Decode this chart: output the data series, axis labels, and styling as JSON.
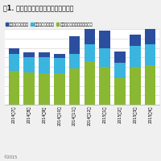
{
  "title": "図1. ウェアラブル端末の販売数量推移",
  "legend_labels": [
    "スマートウォッチ",
    "スポーツウォッチ",
    "その他（リストバンド型など"
  ],
  "colors": [
    "#2b4f9e",
    "#3ab5e0",
    "#8ab832"
  ],
  "categories": [
    "2014年7月",
    "2014年8月",
    "2014年9月",
    "2014年10月",
    "2014年11月",
    "2014年12月",
    "2015年1月",
    "2015年2月",
    "2015年3月",
    "2015年4月"
  ],
  "smart_watch": [
    0.06,
    0.05,
    0.05,
    0.05,
    0.18,
    0.22,
    0.18,
    0.12,
    0.12,
    0.16
  ],
  "sports_watch": [
    0.18,
    0.16,
    0.17,
    0.16,
    0.16,
    0.18,
    0.2,
    0.16,
    0.22,
    0.22
  ],
  "other": [
    0.36,
    0.34,
    0.33,
    0.33,
    0.38,
    0.46,
    0.4,
    0.28,
    0.4,
    0.42
  ],
  "footer": "©2015",
  "background_color": "#f0f0f0",
  "plot_background": "#ffffff",
  "grid_color": "#d8d8d8",
  "title_fontsize": 5.8,
  "legend_fontsize": 3.8,
  "tick_fontsize": 3.5,
  "footer_fontsize": 3.5
}
